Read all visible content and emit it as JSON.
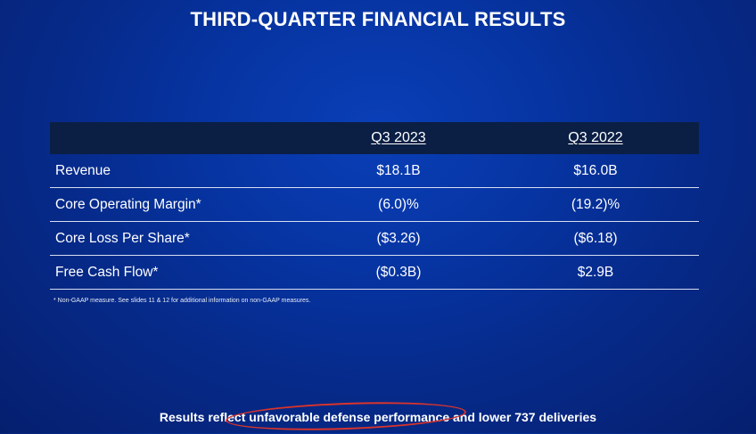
{
  "slide": {
    "title": "THIRD-QUARTER FINANCIAL RESULTS"
  },
  "table": {
    "headers": [
      "",
      "Q3 2023",
      "Q3 2022"
    ],
    "rows": [
      {
        "label": "Revenue",
        "q3_2023": "$18.1B",
        "q3_2022": "$16.0B"
      },
      {
        "label": "Core Operating Margin*",
        "q3_2023": "(6.0)%",
        "q3_2022": "(19.2)%"
      },
      {
        "label": "Core Loss Per Share*",
        "q3_2023": "($3.26)",
        "q3_2022": "($6.18)"
      },
      {
        "label": "Free Cash Flow*",
        "q3_2023": "($0.3B)",
        "q3_2022": "$2.9B"
      }
    ]
  },
  "footnote": "* Non-GAAP measure. See slides 11 & 12 for additional information on non-GAAP measures.",
  "summary": {
    "text": "Results reflect unfavorable defense performance and lower 737 deliveries",
    "highlight_color": "#d9342b"
  }
}
